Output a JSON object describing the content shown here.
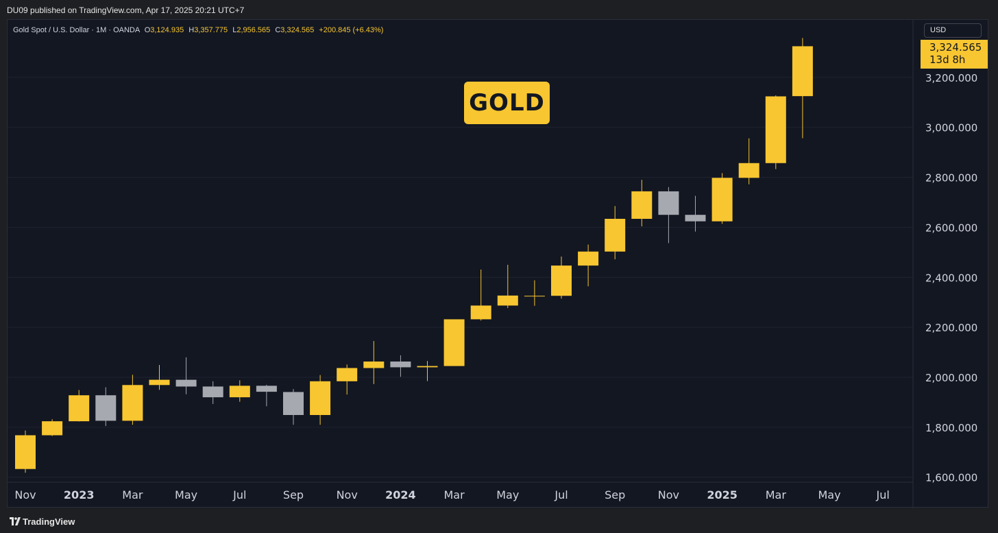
{
  "header": {
    "published": "DU09 published on TradingView.com, Apr 17, 2025 20:21 UTC+7"
  },
  "legend": {
    "symbol": "Gold Spot / U.S. Dollar · 1M · OANDA",
    "o_label": "O",
    "o": "3,124.935",
    "h_label": "H",
    "h": "3,357.775",
    "l_label": "L",
    "l": "2,956.565",
    "c_label": "C",
    "c": "3,324.565",
    "change": "+200.845 (+6.43%)"
  },
  "annotation": {
    "label": "GOLD"
  },
  "currency_button": {
    "label": "USD"
  },
  "price_tag": {
    "price": "3,324.565",
    "countdown": "13d 8h"
  },
  "footer": {
    "brand": "TradingView"
  },
  "colors": {
    "up": "#f7c631",
    "down": "#a7a9b0",
    "background": "#131722",
    "grid": "#1f2330",
    "text": "#d1d4dc"
  },
  "chart_data": {
    "type": "candlestick",
    "interval": "1M",
    "ylim": [
      1580,
      3430
    ],
    "y_ticks": [
      1600,
      1800,
      2000,
      2200,
      2400,
      2600,
      2800,
      3000,
      3200
    ],
    "y_tick_labels": [
      "1,600.000",
      "1,800.000",
      "2,000.000",
      "2,200.000",
      "2,400.000",
      "2,600.000",
      "2,800.000",
      "3,000.000",
      "3,200.000"
    ],
    "x_ticks": [
      {
        "label": "Nov",
        "index": 0,
        "bold": false
      },
      {
        "label": "2023",
        "index": 2,
        "bold": true
      },
      {
        "label": "Mar",
        "index": 4,
        "bold": false
      },
      {
        "label": "May",
        "index": 6,
        "bold": false
      },
      {
        "label": "Jul",
        "index": 8,
        "bold": false
      },
      {
        "label": "Sep",
        "index": 10,
        "bold": false
      },
      {
        "label": "Nov",
        "index": 12,
        "bold": false
      },
      {
        "label": "2024",
        "index": 14,
        "bold": true
      },
      {
        "label": "Mar",
        "index": 16,
        "bold": false
      },
      {
        "label": "May",
        "index": 18,
        "bold": false
      },
      {
        "label": "Jul",
        "index": 20,
        "bold": false
      },
      {
        "label": "Sep",
        "index": 22,
        "bold": false
      },
      {
        "label": "Nov",
        "index": 24,
        "bold": false
      },
      {
        "label": "2025",
        "index": 26,
        "bold": true
      },
      {
        "label": "Mar",
        "index": 28,
        "bold": false
      },
      {
        "label": "May",
        "index": 30,
        "bold": false
      },
      {
        "label": "Jul",
        "index": 32,
        "bold": false
      }
    ],
    "candles": [
      {
        "month": "2022-11",
        "open": 1633,
        "high": 1787,
        "low": 1618,
        "close": 1768
      },
      {
        "month": "2022-12",
        "open": 1768,
        "high": 1832,
        "low": 1765,
        "close": 1824
      },
      {
        "month": "2023-01",
        "open": 1824,
        "high": 1949,
        "low": 1823,
        "close": 1928
      },
      {
        "month": "2023-02",
        "open": 1928,
        "high": 1960,
        "low": 1805,
        "close": 1826
      },
      {
        "month": "2023-03",
        "open": 1826,
        "high": 2010,
        "low": 1810,
        "close": 1969
      },
      {
        "month": "2023-04",
        "open": 1969,
        "high": 2049,
        "low": 1950,
        "close": 1990
      },
      {
        "month": "2023-05",
        "open": 1990,
        "high": 2080,
        "low": 1932,
        "close": 1963
      },
      {
        "month": "2023-06",
        "open": 1963,
        "high": 1984,
        "low": 1893,
        "close": 1920
      },
      {
        "month": "2023-07",
        "open": 1920,
        "high": 1988,
        "low": 1902,
        "close": 1966
      },
      {
        "month": "2023-08",
        "open": 1966,
        "high": 1970,
        "low": 1884,
        "close": 1942
      },
      {
        "month": "2023-09",
        "open": 1941,
        "high": 1953,
        "low": 1810,
        "close": 1849
      },
      {
        "month": "2023-10",
        "open": 1849,
        "high": 2009,
        "low": 1810,
        "close": 1984
      },
      {
        "month": "2023-11",
        "open": 1984,
        "high": 2051,
        "low": 1931,
        "close": 2037
      },
      {
        "month": "2023-12",
        "open": 2037,
        "high": 2145,
        "low": 1973,
        "close": 2063
      },
      {
        "month": "2024-01",
        "open": 2063,
        "high": 2088,
        "low": 2002,
        "close": 2040
      },
      {
        "month": "2024-02",
        "open": 2040,
        "high": 2065,
        "low": 1985,
        "close": 2045
      },
      {
        "month": "2024-03",
        "open": 2045,
        "high": 2223,
        "low": 2045,
        "close": 2232
      },
      {
        "month": "2024-04",
        "open": 2232,
        "high": 2431,
        "low": 2227,
        "close": 2287
      },
      {
        "month": "2024-05",
        "open": 2287,
        "high": 2450,
        "low": 2277,
        "close": 2327
      },
      {
        "month": "2024-06",
        "open": 2326,
        "high": 2388,
        "low": 2286,
        "close": 2326
      },
      {
        "month": "2024-07",
        "open": 2326,
        "high": 2483,
        "low": 2315,
        "close": 2447
      },
      {
        "month": "2024-08",
        "open": 2447,
        "high": 2531,
        "low": 2364,
        "close": 2503
      },
      {
        "month": "2024-09",
        "open": 2503,
        "high": 2685,
        "low": 2472,
        "close": 2634
      },
      {
        "month": "2024-10",
        "open": 2634,
        "high": 2790,
        "low": 2604,
        "close": 2744
      },
      {
        "month": "2024-11",
        "open": 2744,
        "high": 2761,
        "low": 2537,
        "close": 2650
      },
      {
        "month": "2024-12",
        "open": 2650,
        "high": 2726,
        "low": 2583,
        "close": 2624
      },
      {
        "month": "2025-01",
        "open": 2624,
        "high": 2817,
        "low": 2614,
        "close": 2798
      },
      {
        "month": "2025-02",
        "open": 2798,
        "high": 2956,
        "low": 2772,
        "close": 2857
      },
      {
        "month": "2025-03",
        "open": 2857,
        "high": 3128,
        "low": 2833,
        "close": 3124
      },
      {
        "month": "2025-04",
        "open": 3124.935,
        "high": 3357.775,
        "low": 2956.565,
        "close": 3324.565
      }
    ]
  }
}
